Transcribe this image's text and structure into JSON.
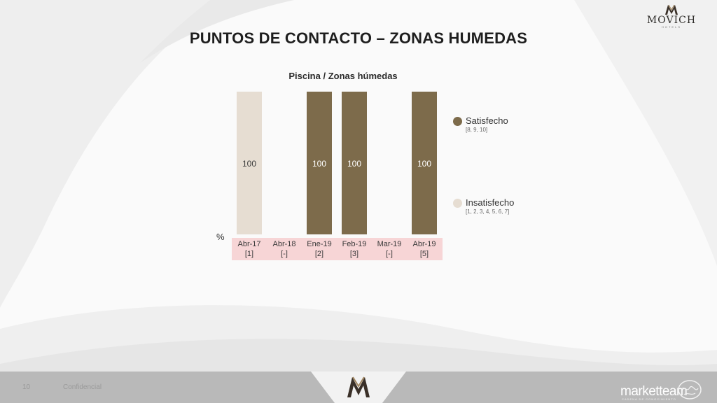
{
  "slide": {
    "title": "PUNTOS DE CONTACTO – ZONAS HUMEDAS",
    "page_number": "10",
    "footer_note": "Confidencial"
  },
  "brand": {
    "name": "MOVICH",
    "sub": "HOTELS",
    "agency": "marketteam",
    "agency_sub": "CADENA DE CONOCIMIENTO"
  },
  "colors": {
    "satisfecho": "#7d6b4b",
    "insatisfecho": "#e6ddd2",
    "xband": "#f7d5d6"
  },
  "chart_data": {
    "type": "bar",
    "stacked": true,
    "title": "Piscina / Zonas húmedas",
    "ylabel": "%",
    "ylim": [
      0,
      100
    ],
    "categories": [
      "Abr-17",
      "Abr-18",
      "Ene-19",
      "Feb-19",
      "Mar-19",
      "Abr-19"
    ],
    "bases": [
      "[1]",
      "[-]",
      "[2]",
      "[3]",
      "[-]",
      "[5]"
    ],
    "series": [
      {
        "name": "Satisfecho",
        "range": "[8, 9, 10]",
        "color": "#7d6b4b",
        "values": [
          0,
          null,
          100,
          100,
          null,
          100
        ]
      },
      {
        "name": "Insatisfecho",
        "range": "[1, 2, 3, 4, 5, 6, 7]",
        "color": "#e6ddd2",
        "values": [
          100,
          null,
          0,
          0,
          null,
          0
        ]
      }
    ],
    "data_labels": [
      "100",
      "",
      "100",
      "100",
      "",
      "100"
    ],
    "legend_position": "right"
  }
}
